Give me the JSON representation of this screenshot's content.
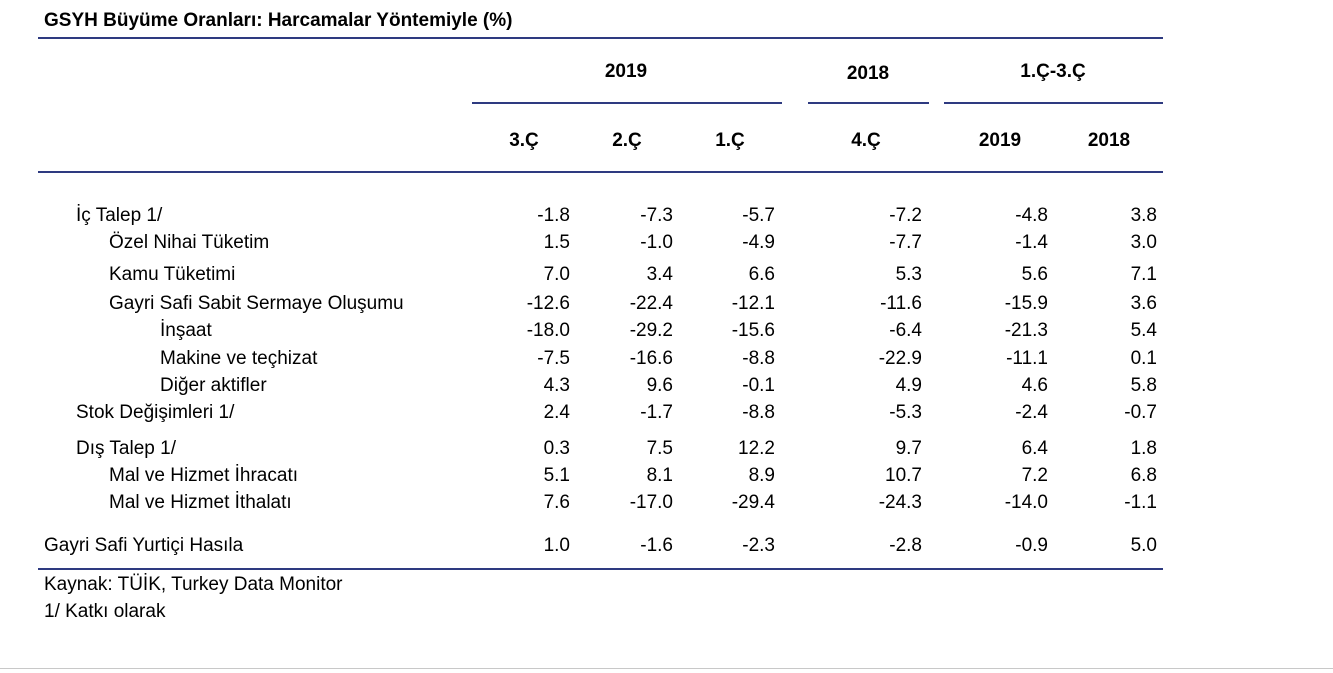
{
  "title": "GSYH Büyüme Oranları: Harcamalar Yöntemiyle (%)",
  "header": {
    "groups": [
      "2019",
      "2018",
      "1.Ç-3.Ç"
    ],
    "subs": [
      "3.Ç",
      "2.Ç",
      "1.Ç",
      "4.Ç",
      "2019",
      "2018"
    ]
  },
  "rows": [
    {
      "label": "İç Talep 1/",
      "values": [
        "-1.8",
        "-7.3",
        "-5.7",
        "-7.2",
        "-4.8",
        "3.8"
      ]
    },
    {
      "label": "Özel Nihai Tüketim",
      "values": [
        "1.5",
        "-1.0",
        "-4.9",
        "-7.7",
        "-1.4",
        "3.0"
      ]
    },
    {
      "label": "Kamu Tüketimi",
      "values": [
        "7.0",
        "3.4",
        "6.6",
        "5.3",
        "5.6",
        "7.1"
      ]
    },
    {
      "label": "Gayri Safi Sabit Sermaye Oluşumu",
      "values": [
        "-12.6",
        "-22.4",
        "-12.1",
        "-11.6",
        "-15.9",
        "3.6"
      ]
    },
    {
      "label": "İnşaat",
      "values": [
        "-18.0",
        "-29.2",
        "-15.6",
        "-6.4",
        "-21.3",
        "5.4"
      ]
    },
    {
      "label": "Makine ve teçhizat",
      "values": [
        "-7.5",
        "-16.6",
        "-8.8",
        "-22.9",
        "-11.1",
        "0.1"
      ]
    },
    {
      "label": "Diğer aktifler",
      "values": [
        "4.3",
        "9.6",
        "-0.1",
        "4.9",
        "4.6",
        "5.8"
      ]
    },
    {
      "label": "Stok Değişimleri 1/",
      "values": [
        "2.4",
        "-1.7",
        "-8.8",
        "-5.3",
        "-2.4",
        "-0.7"
      ]
    },
    {
      "label": "Dış Talep 1/",
      "values": [
        "0.3",
        "7.5",
        "12.2",
        "9.7",
        "6.4",
        "1.8"
      ]
    },
    {
      "label": "Mal ve Hizmet İhracatı",
      "values": [
        "5.1",
        "8.1",
        "8.9",
        "10.7",
        "7.2",
        "6.8"
      ]
    },
    {
      "label": "Mal ve Hizmet İthalatı",
      "values": [
        "7.6",
        "-17.0",
        "-29.4",
        "-24.3",
        "-14.0",
        "-1.1"
      ]
    },
    {
      "label": "Gayri Safi Yurtiçi Hasıla",
      "values": [
        "1.0",
        "-1.6",
        "-2.3",
        "-2.8",
        "-0.9",
        "5.0"
      ]
    }
  ],
  "footer": {
    "source": "Kaynak: TÜİK, Turkey Data Monitor",
    "note": "1/ Katkı olarak"
  },
  "colors": {
    "rule": "#2e3a80"
  }
}
